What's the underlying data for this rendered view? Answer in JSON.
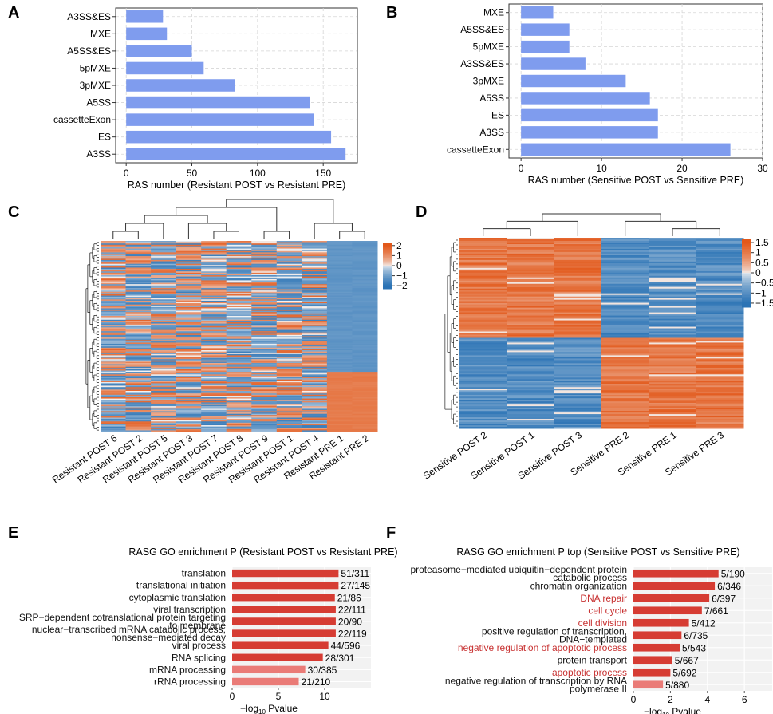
{
  "colors": {
    "bar_blue": "#7f9cee",
    "go_red": "#d63c33",
    "go_pink": "#ea7b77",
    "heat_high": "#e2581a",
    "heat_mid": "#f4f4f4",
    "heat_low": "#2b73b5",
    "grid": "#d6d6d6",
    "red_text": "#c83232"
  },
  "panels": {
    "A": {
      "letter": "A",
      "chart_data": {
        "type": "bar",
        "orientation": "horizontal",
        "categories": [
          "A3SS&ES",
          "MXE",
          "A5SS&ES",
          "5pMXE",
          "3pMXE",
          "A5SS",
          "cassetteExon",
          "ES",
          "A3SS"
        ],
        "values": [
          28,
          31,
          50,
          59,
          83,
          140,
          143,
          156,
          167
        ],
        "xlabel": "RAS number (Resistant POST vs Resistant PRE)",
        "xlim": [
          -8,
          176
        ],
        "ticks": [
          0,
          50,
          100,
          150
        ],
        "tick_labels": [
          "0",
          "50",
          "100",
          "150"
        ]
      }
    },
    "B": {
      "letter": "B",
      "chart_data": {
        "type": "bar",
        "orientation": "horizontal",
        "categories": [
          "MXE",
          "A5SS&ES",
          "5pMXE",
          "A3SS&ES",
          "3pMXE",
          "A5SS",
          "ES",
          "A3SS",
          "cassetteExon"
        ],
        "values": [
          4,
          6,
          6,
          8,
          13,
          16,
          17,
          17,
          26
        ],
        "xlabel": "RAS number (Sensitive POST vs Sensitive PRE)",
        "xlim": [
          -1.5,
          30
        ],
        "ticks": [
          0,
          10,
          20,
          30
        ],
        "tick_labels": [
          "0",
          "10",
          "20",
          "30"
        ]
      }
    },
    "C": {
      "letter": "C",
      "chart_data": {
        "type": "heatmap",
        "columns": [
          "Resistant POST 6",
          "Resistant POST 2",
          "Resistant POST 5",
          "Resistant POST 3",
          "Resistant POST 7",
          "Resistant POST 8",
          "Resistant POST 9",
          "Resistant POST 1",
          "Resistant POST 4",
          "Resistant PRE 1",
          "Resistant PRE 2"
        ],
        "legend_ticks": [
          "2",
          "1",
          "0",
          "−1",
          "−2"
        ],
        "legend_values": [
          2,
          1,
          0,
          -1,
          -2
        ],
        "legend_range": [
          -2.3,
          2.3
        ]
      }
    },
    "D": {
      "letter": "D",
      "chart_data": {
        "type": "heatmap",
        "columns": [
          "Sensitive POST 2",
          "Sensitive POST 1",
          "Sensitive POST 3",
          "Sensitive PRE 2",
          "Sensitive PRE 1",
          "Sensitive PRE 3"
        ],
        "legend_ticks": [
          "1.5",
          "1",
          "0.5",
          "0",
          "−0.5",
          "−1",
          "−1.5"
        ],
        "legend_values": [
          1.5,
          1,
          0.5,
          0,
          -0.5,
          -1,
          -1.5
        ],
        "legend_range": [
          -1.7,
          1.7
        ]
      }
    },
    "E": {
      "letter": "E",
      "chart_data": {
        "type": "bar",
        "orientation": "horizontal",
        "title": "RASG GO enrichment P (Resistant POST vs Resistant PRE)",
        "terms": [
          {
            "lines": [
              "translation"
            ],
            "value": 11.5,
            "label": "51/311",
            "tone": "dark",
            "red": false
          },
          {
            "lines": [
              "translational initiation"
            ],
            "value": 11.5,
            "label": "27/145",
            "tone": "dark",
            "red": false
          },
          {
            "lines": [
              "cytoplasmic translation"
            ],
            "value": 11.1,
            "label": "21/86",
            "tone": "dark",
            "red": false
          },
          {
            "lines": [
              "viral transcription"
            ],
            "value": 11.2,
            "label": "22/111",
            "tone": "dark",
            "red": false
          },
          {
            "lines": [
              "SRP−dependent cotranslational protein targeting",
              "to membrane"
            ],
            "value": 11.2,
            "label": "20/90",
            "tone": "dark",
            "red": false
          },
          {
            "lines": [
              "nuclear−transcribed mRNA catabolic process,",
              "nonsense−mediated decay"
            ],
            "value": 11.2,
            "label": "22/119",
            "tone": "dark",
            "red": false
          },
          {
            "lines": [
              "viral process"
            ],
            "value": 10.4,
            "label": "44/596",
            "tone": "dark",
            "red": false
          },
          {
            "lines": [
              "RNA splicing"
            ],
            "value": 9.8,
            "label": "28/301",
            "tone": "dark",
            "red": false
          },
          {
            "lines": [
              "mRNA processing"
            ],
            "value": 7.9,
            "label": "30/385",
            "tone": "light",
            "red": false
          },
          {
            "lines": [
              "rRNA processing"
            ],
            "value": 7.2,
            "label": "21/210",
            "tone": "light",
            "red": false
          }
        ],
        "xlabel_prefix": "−log",
        "xlabel_sub": "10",
        "xlabel_suffix": " Pvalue",
        "xlim": [
          0,
          15
        ],
        "ticks": [
          0,
          5,
          10
        ],
        "tick_labels": [
          "0",
          "5",
          "10"
        ]
      }
    },
    "F": {
      "letter": "F",
      "chart_data": {
        "type": "bar",
        "orientation": "horizontal",
        "title": "RASG GO enrichment P top (Sensitive POST vs Sensitive PRE)",
        "terms": [
          {
            "lines": [
              "proteasome−mediated ubiquitin−dependent protein",
              "catabolic process"
            ],
            "value": 4.6,
            "label": "5/190",
            "tone": "dark",
            "red": false
          },
          {
            "lines": [
              "chromatin organization"
            ],
            "value": 4.4,
            "label": "6/346",
            "tone": "dark",
            "red": false
          },
          {
            "lines": [
              "DNA repair"
            ],
            "value": 4.1,
            "label": "6/397",
            "tone": "dark",
            "red": true
          },
          {
            "lines": [
              "cell cycle"
            ],
            "value": 3.7,
            "label": "7/661",
            "tone": "dark",
            "red": true
          },
          {
            "lines": [
              "cell division"
            ],
            "value": 3.0,
            "label": "5/412",
            "tone": "dark",
            "red": true
          },
          {
            "lines": [
              "positive regulation of transcription,",
              "DNA−templated"
            ],
            "value": 2.6,
            "label": "6/735",
            "tone": "dark",
            "red": false
          },
          {
            "lines": [
              "negative regulation of apoptotic process"
            ],
            "value": 2.5,
            "label": "5/543",
            "tone": "dark",
            "red": true
          },
          {
            "lines": [
              "protein transport"
            ],
            "value": 2.1,
            "label": "5/667",
            "tone": "dark",
            "red": false
          },
          {
            "lines": [
              "apoptotic process"
            ],
            "value": 2.0,
            "label": "5/692",
            "tone": "dark",
            "red": true
          },
          {
            "lines": [
              "negative regulation of transcription by RNA",
              "polymerase II"
            ],
            "value": 1.6,
            "label": "5/880",
            "tone": "light",
            "red": false
          }
        ],
        "xlabel_prefix": "−log",
        "xlabel_sub": "10",
        "xlabel_suffix": " Pvalue",
        "xlim": [
          0,
          7.5
        ],
        "ticks": [
          0,
          2,
          4,
          6
        ],
        "tick_labels": [
          "0",
          "2",
          "4",
          "6"
        ]
      }
    }
  }
}
